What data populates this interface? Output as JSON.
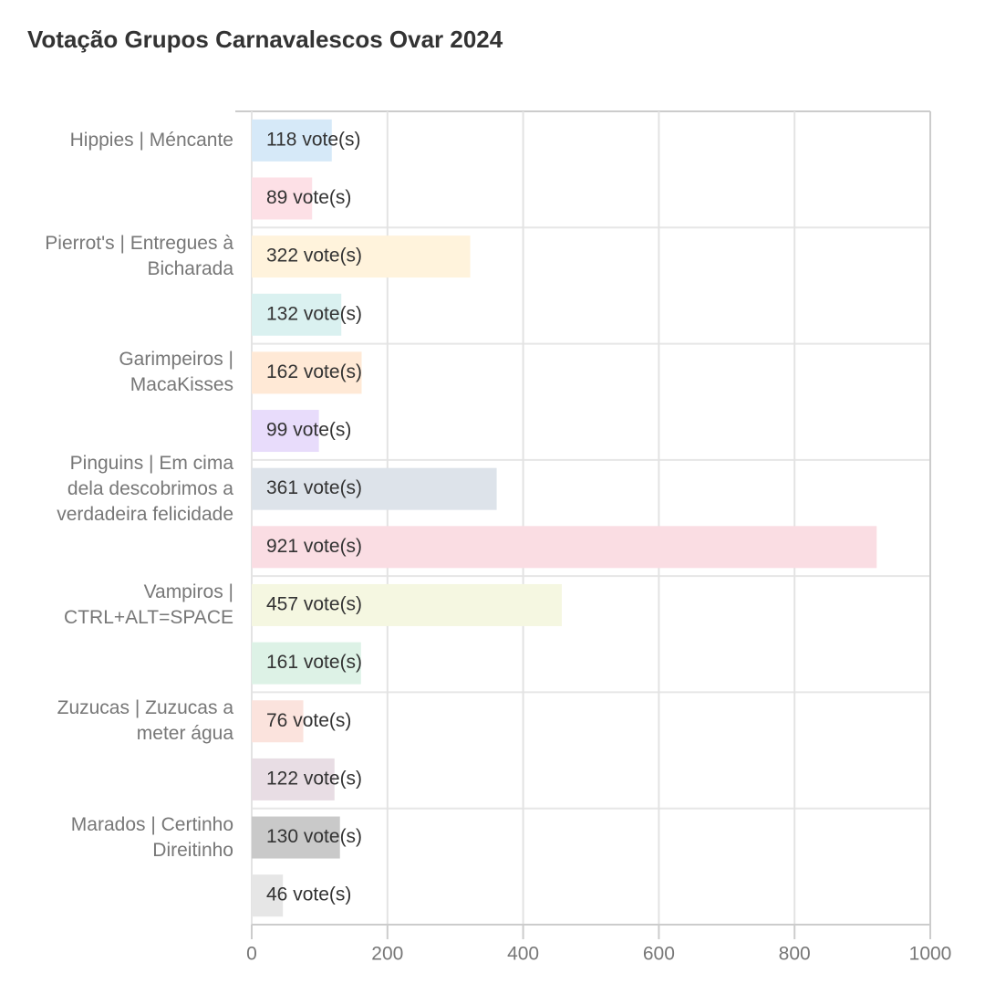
{
  "chart_data": {
    "type": "barh",
    "title": "Votação Grupos Carnavalescos Ovar 2024",
    "categories": [
      "Hippies | Méncante",
      null,
      "Pierrot's | Entregues à Bicharada",
      null,
      "Garimpeiros | MacaKisses",
      null,
      "Pinguins | Em cima dela descobrimos a verdadeira felicidade",
      null,
      "Vampiros | CTRL+ALT=SPACE",
      null,
      "Zuzucas | Zuzucas a meter água",
      null,
      "Marados | Certinho Direitinho",
      null
    ],
    "values": [
      118,
      89,
      322,
      132,
      162,
      99,
      361,
      921,
      457,
      161,
      76,
      122,
      130,
      46
    ],
    "value_labels": [
      "118 vote(s)",
      "89 vote(s)",
      "322 vote(s)",
      "132 vote(s)",
      "162 vote(s)",
      "99 vote(s)",
      "361 vote(s)",
      "921 vote(s)",
      "457 vote(s)",
      "161 vote(s)",
      "76 vote(s)",
      "122 vote(s)",
      "130 vote(s)",
      "46 vote(s)"
    ],
    "colors": [
      "#d6e9f8",
      "#fde0e6",
      "#fff3dc",
      "#daf1f0",
      "#ffe9d6",
      "#e8dcfb",
      "#dde3ea",
      "#fadde3",
      "#f5f7e1",
      "#ddf2e6",
      "#fbe3dd",
      "#e8dde4",
      "#c9c9c9",
      "#e6e6e6"
    ],
    "xlim": [
      0,
      1000
    ],
    "xticks": [
      0,
      200,
      400,
      600,
      800,
      1000
    ],
    "grid": true
  }
}
